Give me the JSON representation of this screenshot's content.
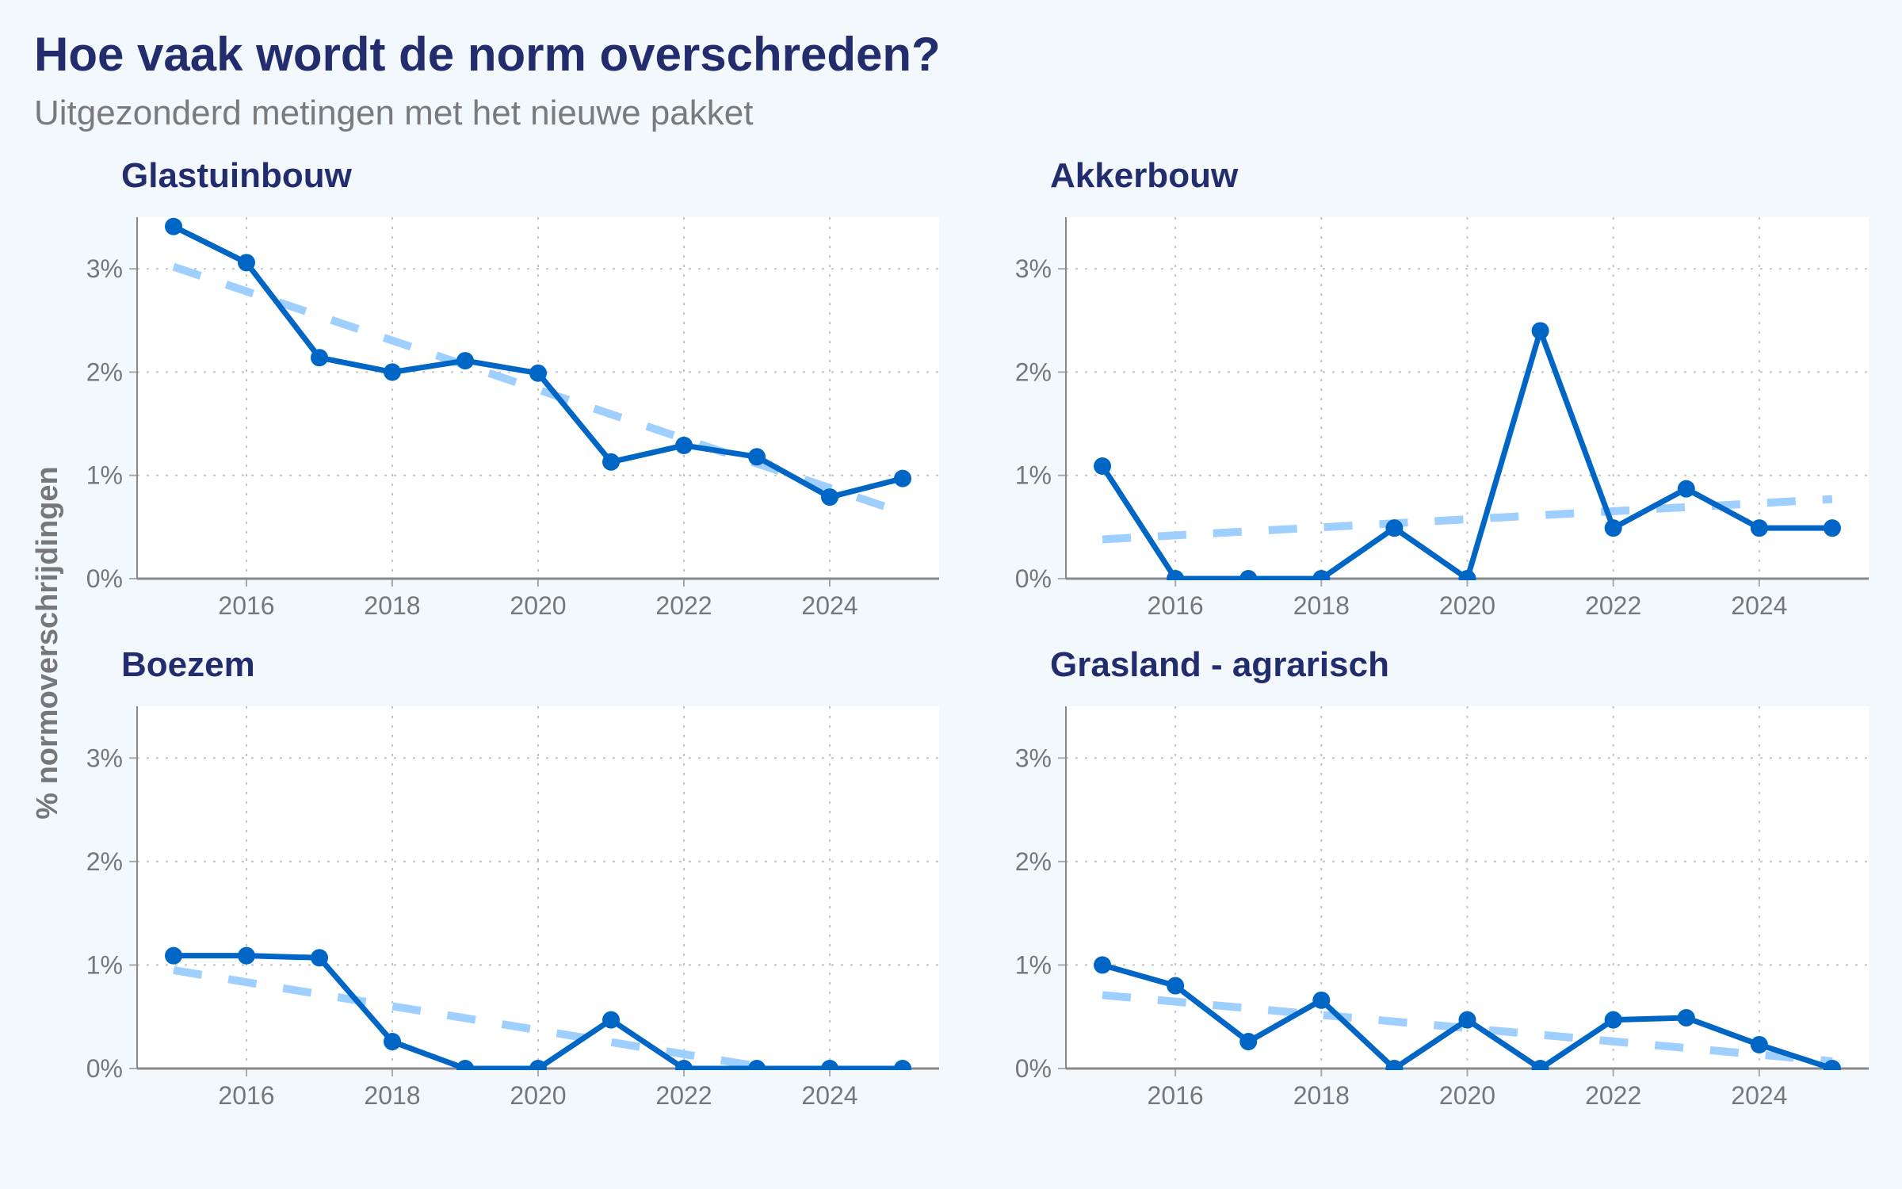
{
  "title": "Hoe vaak wordt de norm overschreden?",
  "subtitle": "Uitgezonderd metingen met het nieuwe pakket",
  "colors": {
    "background": "#f3f8fd",
    "title": "#232d6e",
    "subtitle": "#7a7a7a",
    "line": "#0066c5",
    "trend": "#9fcfff",
    "axis": "#888888",
    "grid": "#c4c4c4"
  },
  "chart_data": [
    {
      "type": "line",
      "title": "Glastuinbouw",
      "xlabel": "",
      "ylabel": "% normoverschrijdingen",
      "x": [
        2015,
        2016,
        2017,
        2018,
        2019,
        2020,
        2021,
        2022,
        2023,
        2024,
        2025
      ],
      "values": [
        3.41,
        3.06,
        2.14,
        2.0,
        2.11,
        1.99,
        1.13,
        1.29,
        1.18,
        0.79,
        0.97
      ],
      "trend": {
        "x": [
          2015,
          2025
        ],
        "y": [
          3.02,
          0.64
        ],
        "style": "dashed"
      },
      "xlim": [
        2014.5,
        2025.5
      ],
      "ylim": [
        0,
        3.5
      ],
      "xticks": [
        2016,
        2018,
        2020,
        2022,
        2024
      ],
      "yticks": [
        0,
        1,
        2,
        3
      ],
      "ytick_labels": [
        "0%",
        "1%",
        "2%",
        "3%"
      ],
      "grid": true
    },
    {
      "type": "line",
      "title": "Akkerbouw",
      "xlabel": "",
      "ylabel": "% normoverschrijdingen",
      "x": [
        2015,
        2016,
        2017,
        2018,
        2019,
        2020,
        2021,
        2022,
        2023,
        2024,
        2025
      ],
      "values": [
        1.09,
        0,
        0,
        0,
        0.49,
        0,
        2.4,
        0.49,
        0.87,
        0.49,
        0.49
      ],
      "trend": {
        "x": [
          2015,
          2025
        ],
        "y": [
          0.38,
          0.77
        ],
        "style": "dashed"
      },
      "xlim": [
        2014.5,
        2025.5
      ],
      "ylim": [
        0,
        3.5
      ],
      "xticks": [
        2016,
        2018,
        2020,
        2022,
        2024
      ],
      "yticks": [
        0,
        1,
        2,
        3
      ],
      "ytick_labels": [
        "0%",
        "1%",
        "2%",
        "3%"
      ],
      "grid": true
    },
    {
      "type": "line",
      "title": "Boezem",
      "xlabel": "",
      "ylabel": "% normoverschrijdingen",
      "x": [
        2015,
        2016,
        2017,
        2018,
        2019,
        2020,
        2021,
        2022,
        2023,
        2024,
        2025
      ],
      "values": [
        1.09,
        1.09,
        1.07,
        0.26,
        0,
        0,
        0.47,
        0,
        0,
        0,
        0
      ],
      "trend": {
        "x": [
          2015,
          2023.2
        ],
        "y": [
          0.95,
          0
        ],
        "style": "dashed"
      },
      "xlim": [
        2014.5,
        2025.5
      ],
      "ylim": [
        0,
        3.5
      ],
      "xticks": [
        2016,
        2018,
        2020,
        2022,
        2024
      ],
      "yticks": [
        0,
        1,
        2,
        3
      ],
      "ytick_labels": [
        "0%",
        "1%",
        "2%",
        "3%"
      ],
      "grid": true
    },
    {
      "type": "line",
      "title": "Grasland - agrarisch",
      "xlabel": "",
      "ylabel": "% normoverschrijdingen",
      "x": [
        2015,
        2016,
        2017,
        2018,
        2019,
        2020,
        2021,
        2022,
        2023,
        2024,
        2025
      ],
      "values": [
        1.0,
        0.8,
        0.26,
        0.66,
        0,
        0.47,
        0,
        0.47,
        0.49,
        0.23,
        0
      ],
      "trend": {
        "x": [
          2015,
          2025
        ],
        "y": [
          0.71,
          0.07
        ],
        "style": "dashed"
      },
      "xlim": [
        2014.5,
        2025.5
      ],
      "ylim": [
        0,
        3.5
      ],
      "xticks": [
        2016,
        2018,
        2020,
        2022,
        2024
      ],
      "yticks": [
        0,
        1,
        2,
        3
      ],
      "ytick_labels": [
        "0%",
        "1%",
        "2%",
        "3%"
      ],
      "grid": true
    }
  ],
  "shared_ylabel": "% normoverschrijdingen"
}
